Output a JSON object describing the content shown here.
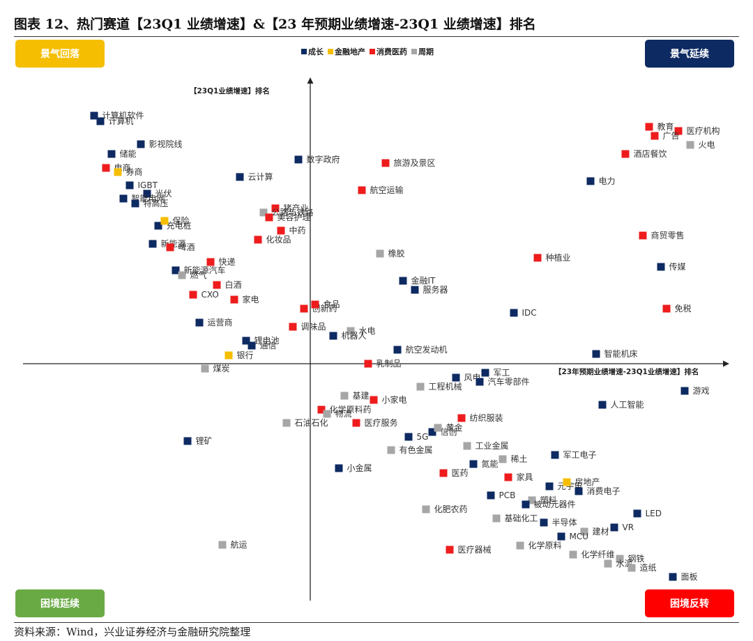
{
  "title": "图表 12、热门赛道【23Q1 业绩增速】&【23 年预期业绩增速-23Q1 业绩增速】排名",
  "source": "资料来源：Wind，兴业证券经济与金融研究院整理",
  "quadrants": {
    "top_left": "景气回落",
    "top_right": "景气延续",
    "bottom_left": "困境延续",
    "bottom_right": "困境反转"
  },
  "quadrant_colors": {
    "top_left": "#F5BE00",
    "top_right": "#0E2A62",
    "bottom_left": "#6AAA45",
    "bottom_right": "#FF0000"
  },
  "chart_data": {
    "type": "scatter",
    "xlabel": "【23年预期业绩增速-23Q1业绩增速】排名",
    "ylabel": "【23Q1业绩增速】排名",
    "xlim": [
      -412,
      600
    ],
    "ylim": [
      -340,
      410
    ],
    "grid": false,
    "legend_position": "top-center",
    "legend": [
      {
        "name": "成长",
        "color": "#0E2A62"
      },
      {
        "name": "金融地产",
        "color": "#F5BE00"
      },
      {
        "name": "消费医药",
        "color": "#EE1C1C"
      },
      {
        "name": "周期",
        "color": "#A6A6A6"
      }
    ],
    "points": [
      {
        "label": "计算机软件",
        "group": "成长",
        "x": -310,
        "y": 356
      },
      {
        "label": "计算机",
        "group": "成长",
        "x": -301,
        "y": 348
      },
      {
        "label": "影视院线",
        "group": "成长",
        "x": -243,
        "y": 315
      },
      {
        "label": "储能",
        "group": "成长",
        "x": -285,
        "y": 301
      },
      {
        "label": "电商",
        "group": "消费医药",
        "x": -293,
        "y": 281
      },
      {
        "label": "券商",
        "group": "金融地产",
        "x": -276,
        "y": 275
      },
      {
        "label": "IGBT",
        "group": "成长",
        "x": -259,
        "y": 256
      },
      {
        "label": "光伏",
        "group": "成长",
        "x": -234,
        "y": 244
      },
      {
        "label": "智能电网",
        "group": "成长",
        "x": -268,
        "y": 237
      },
      {
        "label": "特高压",
        "group": "成长",
        "x": -251,
        "y": 230
      },
      {
        "label": "充电桩",
        "group": "成长",
        "x": -218,
        "y": 198
      },
      {
        "label": "保险",
        "group": "金融地产",
        "x": -209,
        "y": 205
      },
      {
        "label": "新能源",
        "group": "成长",
        "x": -226,
        "y": 172
      },
      {
        "label": "啤酒",
        "group": "消费医药",
        "x": -201,
        "y": 167
      },
      {
        "label": "新能源汽车",
        "group": "成长",
        "x": -193,
        "y": 134
      },
      {
        "label": "燃气",
        "group": "周期",
        "x": -184,
        "y": 127
      },
      {
        "label": "CXO",
        "group": "消费医药",
        "x": -168,
        "y": 99
      },
      {
        "label": "白酒",
        "group": "消费医药",
        "x": -134,
        "y": 113
      },
      {
        "label": "快递",
        "group": "消费医药",
        "x": -143,
        "y": 146
      },
      {
        "label": "家电",
        "group": "消费医药",
        "x": -109,
        "y": 92
      },
      {
        "label": "创新药",
        "group": "消费医药",
        "x": -9,
        "y": 79
      },
      {
        "label": "食品",
        "group": "消费医药",
        "x": 7,
        "y": 85
      },
      {
        "label": "运营商",
        "group": "成长",
        "x": -159,
        "y": 59
      },
      {
        "label": "调味品",
        "group": "消费医药",
        "x": -25,
        "y": 53
      },
      {
        "label": "锂电池",
        "group": "成长",
        "x": -92,
        "y": 33
      },
      {
        "label": "通信",
        "group": "成长",
        "x": -84,
        "y": 26
      },
      {
        "label": "银行",
        "group": "金融地产",
        "x": -117,
        "y": 12
      },
      {
        "label": "煤炭",
        "group": "周期",
        "x": -151,
        "y": -7
      },
      {
        "label": "数字政府",
        "group": "成长",
        "x": -17,
        "y": 293
      },
      {
        "label": "云计算",
        "group": "成长",
        "x": -101,
        "y": 268
      },
      {
        "label": "猪产业",
        "group": "消费医药",
        "x": -50,
        "y": 223
      },
      {
        "label": "公路与铁路",
        "group": "周期",
        "x": -67,
        "y": 217
      },
      {
        "label": "美容护理",
        "group": "消费医药",
        "x": -59,
        "y": 210
      },
      {
        "label": "化妆品",
        "group": "消费医药",
        "x": -75,
        "y": 178
      },
      {
        "label": "中药",
        "group": "消费医药",
        "x": -42,
        "y": 191
      },
      {
        "label": "旅游及景区",
        "group": "消费医药",
        "x": 108,
        "y": 288
      },
      {
        "label": "航空运输",
        "group": "消费医药",
        "x": 74,
        "y": 249
      },
      {
        "label": "橡胶",
        "group": "周期",
        "x": 100,
        "y": 158
      },
      {
        "label": "金融IT",
        "group": "成长",
        "x": 133,
        "y": 119
      },
      {
        "label": "服务器",
        "group": "成长",
        "x": 150,
        "y": 106
      },
      {
        "label": "水电",
        "group": "周期",
        "x": 58,
        "y": 47
      },
      {
        "label": "机器人",
        "group": "成长",
        "x": 33,
        "y": 40
      },
      {
        "label": "航空发动机",
        "group": "成长",
        "x": 125,
        "y": 20
      },
      {
        "label": "乳制品",
        "group": "消费医药",
        "x": 83,
        "y": 0
      },
      {
        "label": "IDC",
        "group": "成长",
        "x": 292,
        "y": 73
      },
      {
        "label": "种植业",
        "group": "消费医药",
        "x": 326,
        "y": 152
      },
      {
        "label": "电力",
        "group": "成长",
        "x": 402,
        "y": 262
      },
      {
        "label": "教育",
        "group": "消费医药",
        "x": 486,
        "y": 340
      },
      {
        "label": "医疗机构",
        "group": "消费医药",
        "x": 528,
        "y": 334
      },
      {
        "label": "广告",
        "group": "消费医药",
        "x": 494,
        "y": 327
      },
      {
        "label": "火电",
        "group": "周期",
        "x": 545,
        "y": 314
      },
      {
        "label": "酒店餐饮",
        "group": "消费医药",
        "x": 452,
        "y": 301
      },
      {
        "label": "商贸零售",
        "group": "消费医药",
        "x": 477,
        "y": 184
      },
      {
        "label": "传媒",
        "group": "成长",
        "x": 503,
        "y": 139
      },
      {
        "label": "免税",
        "group": "消费医药",
        "x": 511,
        "y": 79
      },
      {
        "label": "智能机床",
        "group": "成长",
        "x": 410,
        "y": 14
      },
      {
        "label": "风电",
        "group": "成长",
        "x": 209,
        "y": -20
      },
      {
        "label": "军工",
        "group": "成长",
        "x": 251,
        "y": -13
      },
      {
        "label": "汽车零部件",
        "group": "成长",
        "x": 243,
        "y": -26
      },
      {
        "label": "工程机械",
        "group": "周期",
        "x": 158,
        "y": -33
      },
      {
        "label": "游戏",
        "group": "成长",
        "x": 537,
        "y": -39
      },
      {
        "label": "人工智能",
        "group": "成长",
        "x": 419,
        "y": -59
      },
      {
        "label": "基建",
        "group": "周期",
        "x": 49,
        "y": -46
      },
      {
        "label": "小家电",
        "group": "消费医药",
        "x": 91,
        "y": -52
      },
      {
        "label": "化学原料药",
        "group": "消费医药",
        "x": 16,
        "y": -66
      },
      {
        "label": "物流",
        "group": "周期",
        "x": 24,
        "y": -72
      },
      {
        "label": "纺织服装",
        "group": "消费医药",
        "x": 217,
        "y": -78
      },
      {
        "label": "医疗服务",
        "group": "消费医药",
        "x": 66,
        "y": -85
      },
      {
        "label": "信创",
        "group": "成长",
        "x": 175,
        "y": -98
      },
      {
        "label": "黄金",
        "group": "周期",
        "x": 183,
        "y": -92
      },
      {
        "label": "5G",
        "group": "成长",
        "x": 141,
        "y": -105
      },
      {
        "label": "石油石化",
        "group": "周期",
        "x": -34,
        "y": -85
      },
      {
        "label": "锂矿",
        "group": "成长",
        "x": -176,
        "y": -111
      },
      {
        "label": "工业金属",
        "group": "周期",
        "x": 225,
        "y": -118
      },
      {
        "label": "有色金属",
        "group": "周期",
        "x": 116,
        "y": -124
      },
      {
        "label": "军工电子",
        "group": "成长",
        "x": 351,
        "y": -131
      },
      {
        "label": "稀土",
        "group": "周期",
        "x": 276,
        "y": -137
      },
      {
        "label": "氮能",
        "group": "成长",
        "x": 234,
        "y": -144
      },
      {
        "label": "小金属",
        "group": "成长",
        "x": 41,
        "y": -150
      },
      {
        "label": "医药",
        "group": "消费医药",
        "x": 191,
        "y": -157
      },
      {
        "label": "家具",
        "group": "消费医药",
        "x": 284,
        "y": -163
      },
      {
        "label": "元宇宙",
        "group": "成长",
        "x": 343,
        "y": -176
      },
      {
        "label": "房地产",
        "group": "金融地产",
        "x": 368,
        "y": -170
      },
      {
        "label": "消费电子",
        "group": "成长",
        "x": 385,
        "y": -183
      },
      {
        "label": "PCB",
        "group": "成长",
        "x": 259,
        "y": -189
      },
      {
        "label": "塑料",
        "group": "周期",
        "x": 318,
        "y": -196
      },
      {
        "label": "化肥农药",
        "group": "周期",
        "x": 166,
        "y": -209
      },
      {
        "label": "被动元器件",
        "group": "成长",
        "x": 309,
        "y": -202
      },
      {
        "label": "LED",
        "group": "成长",
        "x": 469,
        "y": -215
      },
      {
        "label": "基础化工",
        "group": "周期",
        "x": 267,
        "y": -222
      },
      {
        "label": "半导体",
        "group": "成长",
        "x": 335,
        "y": -228
      },
      {
        "label": "VR",
        "group": "成长",
        "x": 436,
        "y": -235
      },
      {
        "label": "建材",
        "group": "周期",
        "x": 393,
        "y": -241
      },
      {
        "label": "MCU",
        "group": "成长",
        "x": 360,
        "y": -248
      },
      {
        "label": "化学原料",
        "group": "周期",
        "x": 301,
        "y": -261
      },
      {
        "label": "医疗器械",
        "group": "消费医药",
        "x": 200,
        "y": -267
      },
      {
        "label": "化学纤维",
        "group": "周期",
        "x": 377,
        "y": -274
      },
      {
        "label": "钢铁",
        "group": "周期",
        "x": 444,
        "y": -280
      },
      {
        "label": "水泥",
        "group": "周期",
        "x": 427,
        "y": -287
      },
      {
        "label": "造纸",
        "group": "周期",
        "x": 461,
        "y": -293
      },
      {
        "label": "面板",
        "group": "成长",
        "x": 520,
        "y": -306
      },
      {
        "label": "航运",
        "group": "周期",
        "x": -126,
        "y": -260
      }
    ]
  }
}
